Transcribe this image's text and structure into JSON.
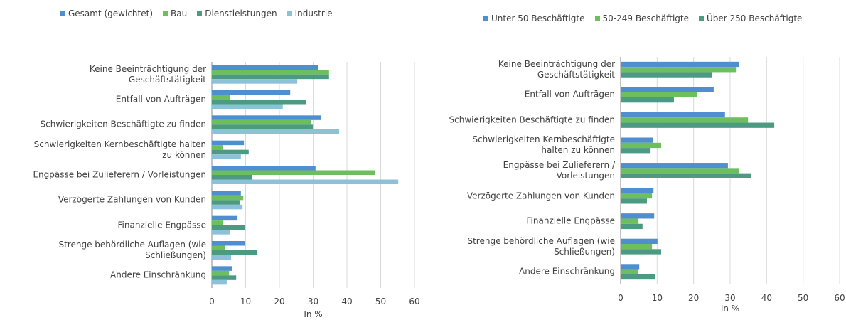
{
  "chart_data": [
    {
      "type": "bar",
      "orientation": "horizontal",
      "categories": [
        "Keine Beeinträchtigung der\nGeschäftstätigkeit",
        "Entfall von Aufträgen",
        "Schwierigkeiten Beschäftigte zu finden",
        "Schwierigkeiten Kernbeschäftigte halten\nzu können",
        "Engpässe bei Zulieferern / Vorleistungen",
        "Verzögerte Zahlungen von Kunden",
        "Finanzielle Engpässe",
        "Strenge behördliche Auflagen (wie\nSchließungen)",
        "Andere Einschränkung"
      ],
      "series": [
        {
          "name": "Gesamt (gewichtet)",
          "color": "#4f8fd1",
          "values": [
            31.4,
            23.2,
            32.4,
            9.5,
            30.7,
            8.6,
            7.6,
            9.7,
            6.1
          ]
        },
        {
          "name": "Bau",
          "color": "#6cbf5c",
          "values": [
            34.7,
            5.3,
            29.3,
            3.2,
            48.4,
            9.3,
            3.4,
            4.0,
            5.1
          ]
        },
        {
          "name": "Dienstleistungen",
          "color": "#4c9a82",
          "values": [
            34.7,
            28.0,
            29.9,
            10.9,
            12.0,
            8.2,
            9.7,
            13.5,
            7.2
          ]
        },
        {
          "name": "Industrie",
          "color": "#8dc1da",
          "values": [
            25.3,
            21.0,
            37.7,
            8.6,
            55.2,
            9.1,
            5.3,
            5.7,
            4.4
          ]
        }
      ],
      "xlim": [
        0,
        60
      ],
      "xticks": [
        0,
        10,
        20,
        30,
        40,
        50,
        60
      ],
      "xlabel": "In %",
      "grid": true,
      "legend": "top"
    },
    {
      "type": "bar",
      "orientation": "horizontal",
      "categories": [
        "Keine Beeinträchtigung der\nGeschäftstätigkeit",
        "Entfall von Aufträgen",
        "Schwierigkeiten Beschäftigte zu finden",
        "Schwierigkeiten Kernbeschäftigte\nhalten zu können",
        "Engpässe bei Zulieferern /\nVorleistungen",
        "Verzögerte Zahlungen von Kunden",
        "Finanzielle Engpässe",
        "Strenge behördliche Auflagen (wie\nSchließungen)",
        "Andere Einschränkung"
      ],
      "series": [
        {
          "name": "Unter 50 Beschäftigte",
          "color": "#4f8fd1",
          "values": [
            32.5,
            25.5,
            28.6,
            8.8,
            29.4,
            9.0,
            9.2,
            10.1,
            5.1
          ]
        },
        {
          "name": "50-249 Beschäftigte",
          "color": "#6cbf5c",
          "values": [
            31.6,
            20.9,
            34.9,
            11.1,
            32.4,
            8.6,
            4.9,
            8.6,
            4.7
          ]
        },
        {
          "name": "Über 250 Beschäftigte",
          "color": "#4c9a82",
          "values": [
            25.1,
            14.6,
            42.1,
            8.2,
            35.7,
            7.2,
            6.0,
            11.1,
            9.4
          ]
        }
      ],
      "xlim": [
        0,
        60
      ],
      "xticks": [
        0,
        10,
        20,
        30,
        40,
        50,
        60
      ],
      "xlabel": "In %",
      "grid": true,
      "legend": "top"
    }
  ]
}
